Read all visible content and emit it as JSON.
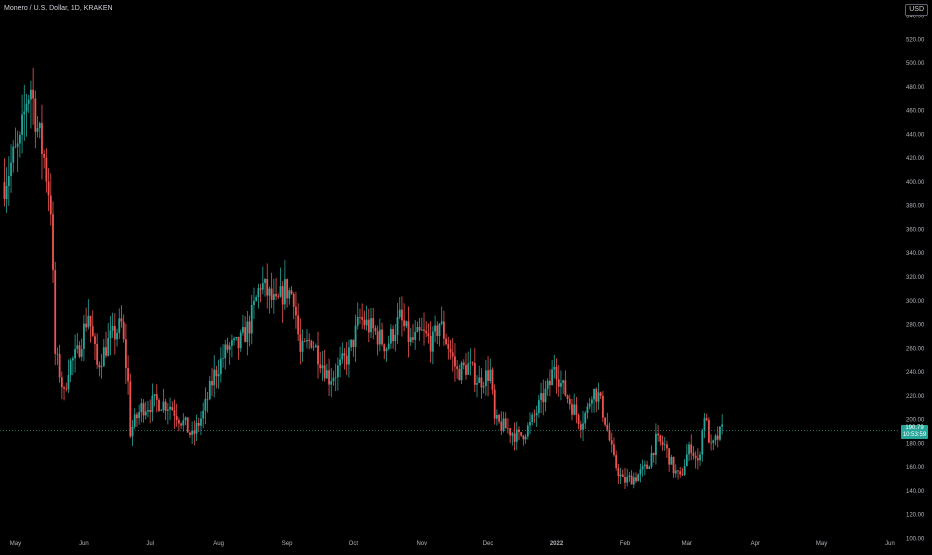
{
  "header": {
    "symbol_title": "Monero / U.S. Dollar, 1D, KRAKEN",
    "currency_button": "USD"
  },
  "price_label": {
    "last_price": "190.79",
    "countdown": "10:53:59"
  },
  "colors": {
    "up": "#26a69a",
    "down": "#ef5350",
    "background": "#000000",
    "text": "#b2b5be",
    "last_price_line": "#26a69a"
  },
  "chart_data": {
    "type": "candlestick",
    "title": "Monero / U.S. Dollar, 1D, KRAKEN",
    "ylabel": "USD",
    "ylim": [
      92,
      548
    ],
    "y_ticks": [
      "100.00",
      "120.00",
      "140.00",
      "160.00",
      "180.00",
      "200.00",
      "220.00",
      "240.00",
      "260.00",
      "280.00",
      "300.00",
      "320.00",
      "340.00",
      "360.00",
      "380.00",
      "400.00",
      "420.00",
      "440.00",
      "460.00",
      "480.00",
      "500.00",
      "520.00",
      "540.00"
    ],
    "x_ticks": [
      "May",
      "Jun",
      "Jul",
      "Aug",
      "Sep",
      "Oct",
      "Nov",
      "Dec",
      "2022",
      "Feb",
      "Mar",
      "Apr",
      "May",
      "Jun"
    ],
    "last_price": 190.79,
    "anchors": [
      [
        "2021-04-26",
        400
      ],
      [
        "2021-04-30",
        420
      ],
      [
        "2021-05-03",
        430
      ],
      [
        "2021-05-06",
        470
      ],
      [
        "2021-05-08",
        480
      ],
      [
        "2021-05-11",
        445
      ],
      [
        "2021-05-14",
        420
      ],
      [
        "2021-05-17",
        380
      ],
      [
        "2021-05-19",
        255
      ],
      [
        "2021-05-21",
        240
      ],
      [
        "2021-05-23",
        220
      ],
      [
        "2021-05-25",
        245
      ],
      [
        "2021-05-29",
        255
      ],
      [
        "2021-06-03",
        290
      ],
      [
        "2021-06-07",
        245
      ],
      [
        "2021-06-12",
        265
      ],
      [
        "2021-06-18",
        280
      ],
      [
        "2021-06-21",
        230
      ],
      [
        "2021-06-22",
        190
      ],
      [
        "2021-06-27",
        210
      ],
      [
        "2021-07-04",
        215
      ],
      [
        "2021-07-10",
        212
      ],
      [
        "2021-07-17",
        195
      ],
      [
        "2021-07-20",
        185
      ],
      [
        "2021-07-25",
        205
      ],
      [
        "2021-07-30",
        238
      ],
      [
        "2021-08-05",
        260
      ],
      [
        "2021-08-10",
        262
      ],
      [
        "2021-08-15",
        280
      ],
      [
        "2021-08-20",
        315
      ],
      [
        "2021-08-27",
        295
      ],
      [
        "2021-08-31",
        310
      ],
      [
        "2021-09-04",
        305
      ],
      [
        "2021-09-07",
        255
      ],
      [
        "2021-09-12",
        268
      ],
      [
        "2021-09-20",
        235
      ],
      [
        "2021-09-23",
        240
      ],
      [
        "2021-09-29",
        255
      ],
      [
        "2021-10-04",
        285
      ],
      [
        "2021-10-10",
        275
      ],
      [
        "2021-10-16",
        262
      ],
      [
        "2021-10-22",
        285
      ],
      [
        "2021-10-27",
        265
      ],
      [
        "2021-11-01",
        272
      ],
      [
        "2021-11-06",
        265
      ],
      [
        "2021-11-09",
        282
      ],
      [
        "2021-11-13",
        262
      ],
      [
        "2021-11-17",
        240
      ],
      [
        "2021-11-22",
        245
      ],
      [
        "2021-11-27",
        232
      ],
      [
        "2021-12-02",
        240
      ],
      [
        "2021-12-04",
        198
      ],
      [
        "2021-12-10",
        192
      ],
      [
        "2021-12-15",
        185
      ],
      [
        "2021-12-20",
        195
      ],
      [
        "2021-12-25",
        215
      ],
      [
        "2021-12-29",
        230
      ],
      [
        "2021-12-31",
        248
      ],
      [
        "2022-01-03",
        230
      ],
      [
        "2022-01-07",
        215
      ],
      [
        "2022-01-12",
        198
      ],
      [
        "2022-01-15",
        208
      ],
      [
        "2022-01-17",
        225
      ],
      [
        "2022-01-20",
        220
      ],
      [
        "2022-01-23",
        200
      ],
      [
        "2022-01-27",
        165
      ],
      [
        "2022-01-31",
        148
      ],
      [
        "2022-02-06",
        152
      ],
      [
        "2022-02-11",
        160
      ],
      [
        "2022-02-15",
        182
      ],
      [
        "2022-02-19",
        178
      ],
      [
        "2022-02-23",
        158
      ],
      [
        "2022-02-26",
        150
      ],
      [
        "2022-03-01",
        170
      ],
      [
        "2022-03-03",
        178
      ],
      [
        "2022-03-06",
        162
      ],
      [
        "2022-03-09",
        205
      ],
      [
        "2022-03-12",
        175
      ],
      [
        "2022-03-15",
        185
      ],
      [
        "2022-03-17",
        191
      ]
    ]
  }
}
